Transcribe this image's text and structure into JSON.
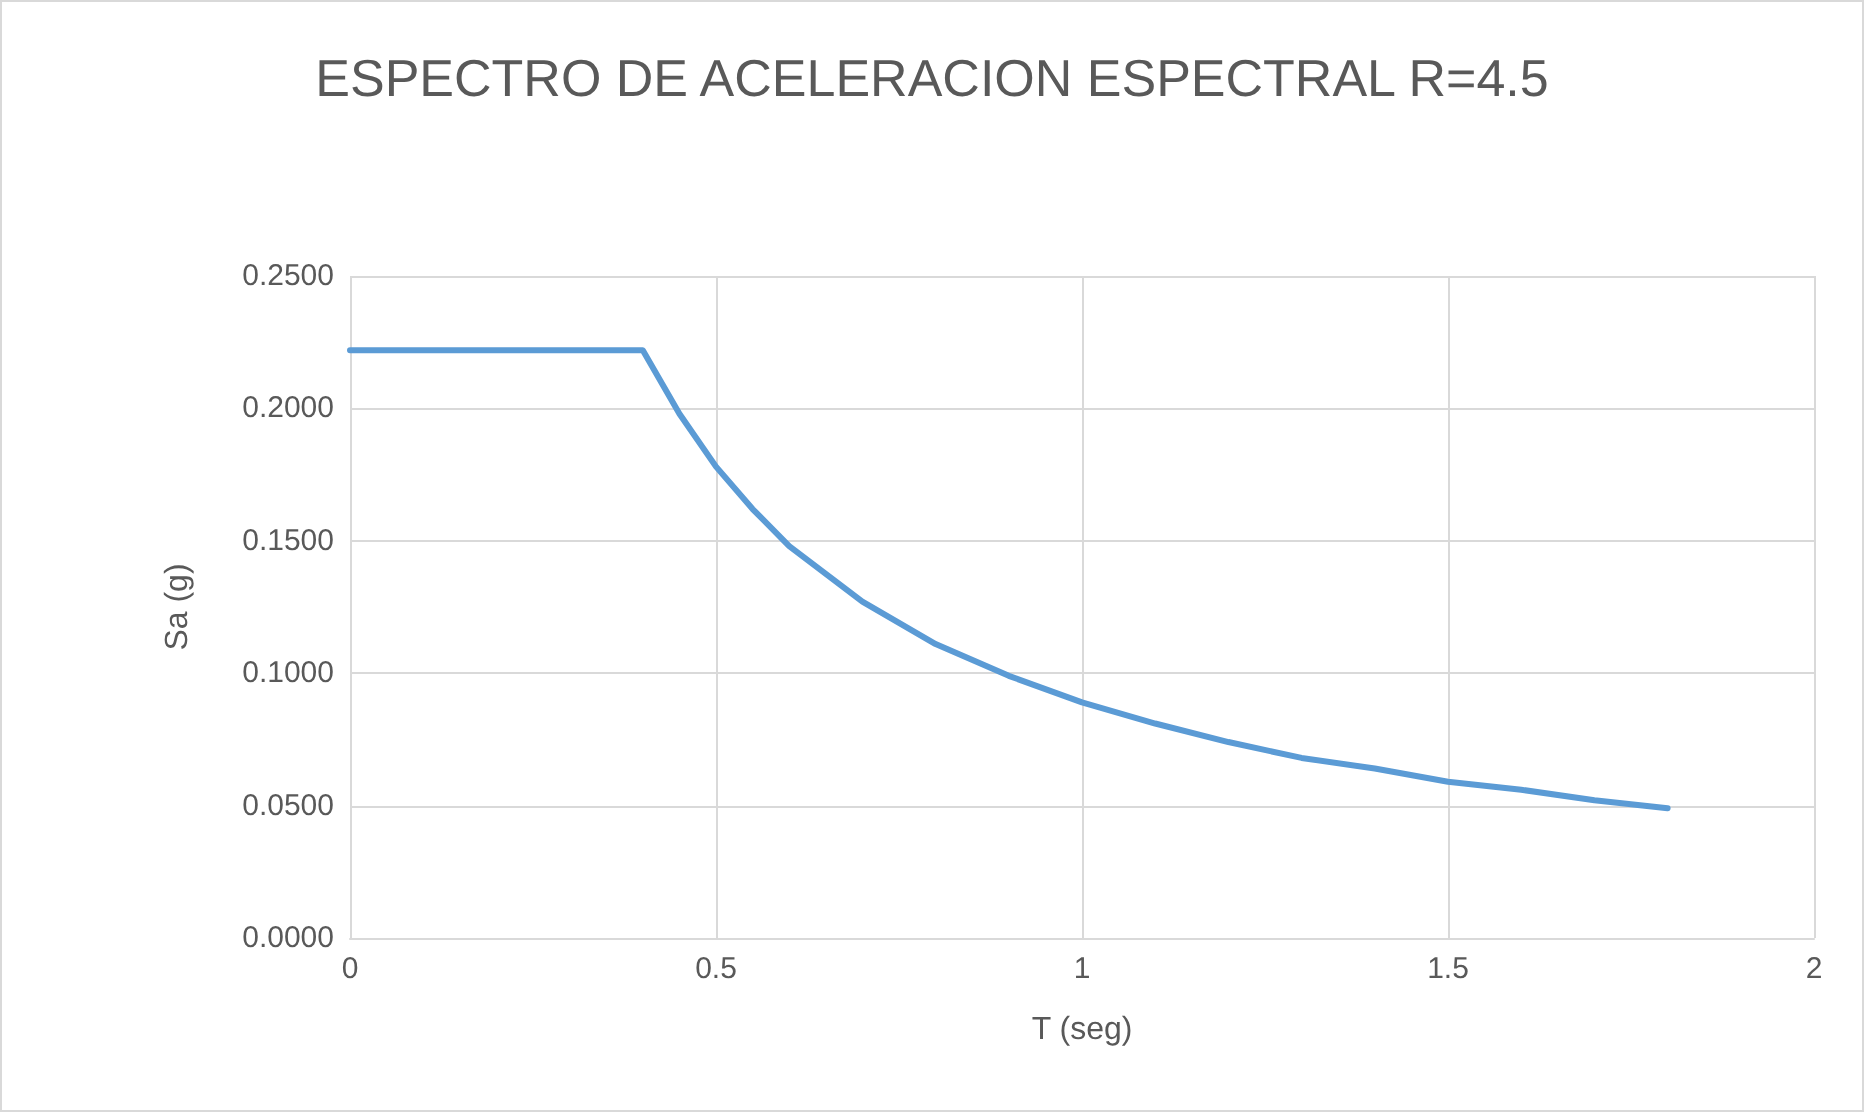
{
  "chart_data": {
    "type": "line",
    "title": "ESPECTRO DE ACELERACION ESPECTRAL R=4.5",
    "xlabel": "T (seg)",
    "ylabel": "Sa (g)",
    "x": [
      0,
      0.1,
      0.2,
      0.3,
      0.35,
      0.4,
      0.45,
      0.5,
      0.55,
      0.6,
      0.7,
      0.8,
      0.9,
      1.0,
      1.1,
      1.2,
      1.3,
      1.4,
      1.5,
      1.6,
      1.7,
      1.8
    ],
    "series": [
      {
        "color": "#5b9bd5",
        "values": [
          0.222,
          0.222,
          0.222,
          0.222,
          0.222,
          0.222,
          0.198,
          0.178,
          0.162,
          0.148,
          0.127,
          0.111,
          0.099,
          0.089,
          0.081,
          0.074,
          0.068,
          0.064,
          0.059,
          0.056,
          0.052,
          0.049
        ]
      }
    ],
    "xlim": [
      0,
      2
    ],
    "xticks": [
      0,
      0.5,
      1,
      1.5,
      2
    ],
    "ylim": [
      0,
      0.25
    ],
    "yticks": [
      {
        "value": 0,
        "label": "0.0000"
      },
      {
        "value": 0.05,
        "label": "0.0500"
      },
      {
        "value": 0.1,
        "label": "0.1000"
      },
      {
        "value": 0.15,
        "label": "0.1500"
      },
      {
        "value": 0.2,
        "label": "0.2000"
      },
      {
        "value": 0.25,
        "label": "0.2500"
      }
    ],
    "grid": true,
    "marker": "none",
    "line_style": "solid"
  }
}
